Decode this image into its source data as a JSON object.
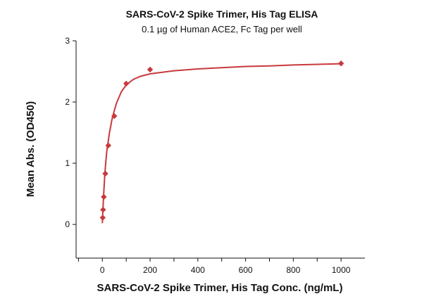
{
  "chart_data": {
    "type": "scatter",
    "title": "SARS-CoV-2 Spike Trimer, His Tag ELISA",
    "subtitle": "0.1 µg of Human ACE2, Fc Tag per well",
    "xlabel": "SARS-CoV-2 Spike Trimer, His Tag Conc. (ng/mL)",
    "ylabel": "Mean Abs. (OD450)",
    "xlim": [
      -110,
      1100
    ],
    "ylim": [
      -0.55,
      3
    ],
    "x_ticks": [
      0,
      200,
      400,
      600,
      800,
      1000
    ],
    "y_ticks": [
      0,
      1,
      2,
      3
    ],
    "grid": false,
    "color": "#c8393b",
    "series": [
      {
        "x": [
          1.56,
          3.13,
          6.25,
          12.5,
          25,
          50,
          100,
          200,
          1000
        ],
        "y": [
          0.11,
          0.24,
          0.45,
          0.83,
          1.29,
          1.77,
          2.3,
          2.53,
          2.63
        ]
      }
    ],
    "fit_curve": {
      "x": [
        0,
        2,
        5,
        10,
        15,
        20,
        30,
        40,
        50,
        60,
        80,
        100,
        130,
        160,
        200,
        300,
        400,
        500,
        600,
        700,
        800,
        900,
        1000
      ],
      "y": [
        0.02,
        0.2,
        0.45,
        0.8,
        1.05,
        1.24,
        1.5,
        1.71,
        1.86,
        1.99,
        2.17,
        2.28,
        2.37,
        2.42,
        2.46,
        2.51,
        2.54,
        2.56,
        2.58,
        2.59,
        2.605,
        2.615,
        2.625
      ]
    }
  }
}
